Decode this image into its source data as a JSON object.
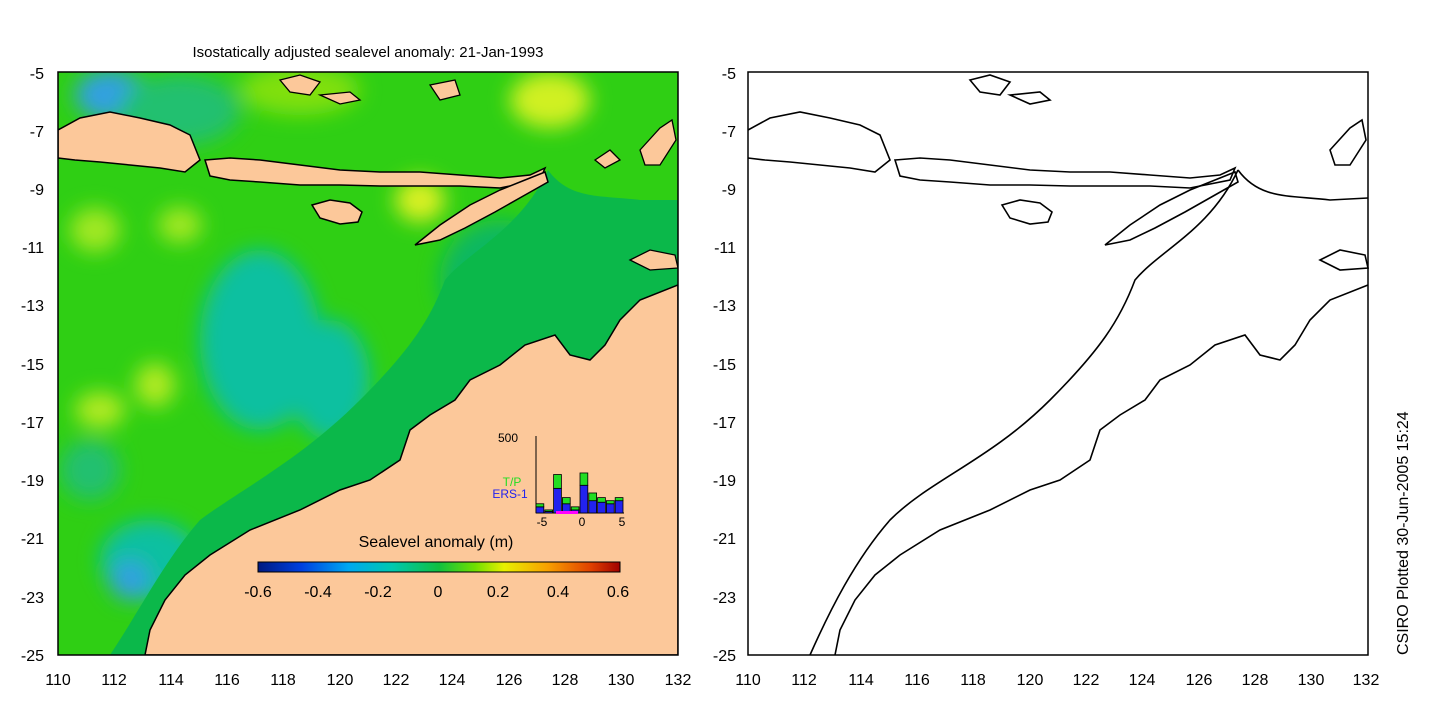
{
  "title": "Isostatically adjusted sealevel anomaly: 21-Jan-1993",
  "credit": "CSIRO Plotted 30-Jun-2005 15:24",
  "map_axes": {
    "lon_ticks": [
      "110",
      "112",
      "114",
      "116",
      "118",
      "120",
      "122",
      "124",
      "126",
      "128",
      "130",
      "132"
    ],
    "lat_ticks": [
      "-5",
      "-7",
      "-9",
      "-11",
      "-13",
      "-15",
      "-17",
      "-19",
      "-21",
      "-23",
      "-25"
    ],
    "lon_range": [
      110,
      132
    ],
    "lat_range": [
      -25,
      -5
    ]
  },
  "colorbar": {
    "title": "Sealevel anomaly (m)",
    "ticks": [
      "-0.6",
      "-0.4",
      "-0.2",
      "0",
      "0.2",
      "0.4",
      "0.6"
    ],
    "range": [
      -0.6,
      0.6
    ]
  },
  "colors": {
    "land": "#fcc89a",
    "ocean_deep": "#0bb84a",
    "ocean_mid": "#2fcf14",
    "coast": "#000000"
  },
  "inset": {
    "y_max_label": "500",
    "legend_tp": "T/P",
    "legend_ers": "ERS-1",
    "x_ticks": [
      "-5",
      "0",
      "5"
    ],
    "tp_color": "#22dd22",
    "ers_color": "#2222ee",
    "marker_color": "#ff00ff"
  },
  "chart_data": {
    "type": "bar",
    "title": "",
    "x": [
      -5,
      -4,
      -3,
      -2,
      -1,
      0,
      1,
      2,
      3,
      4
    ],
    "series": [
      {
        "name": "ERS-1",
        "values": [
          40,
          10,
          160,
          60,
          20,
          180,
          80,
          70,
          60,
          80
        ]
      },
      {
        "name": "T/P",
        "values": [
          20,
          10,
          90,
          40,
          20,
          80,
          50,
          30,
          20,
          20
        ]
      }
    ],
    "xlim": [
      -5,
      5
    ],
    "ylim": [
      0,
      500
    ]
  }
}
